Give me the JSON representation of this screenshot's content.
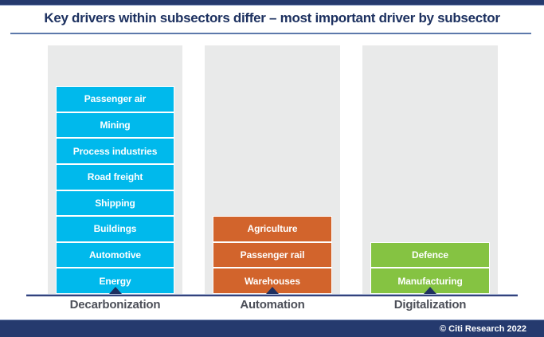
{
  "page": {
    "title": "Key drivers within subsectors differ – most important driver by subsector",
    "footer_credit": "© Citi Research 2022"
  },
  "colors": {
    "navy_bar": "#253a6e",
    "title_navy": "#1d3160",
    "underline_blue": "#5d79ab",
    "panel_gray": "#e9eaea",
    "decarbonization_cyan": "#00b9ec",
    "automation_orange": "#d2642c",
    "digitalization_green": "#85c342",
    "category_label_gray": "#4c4f58",
    "bar_text": "#ffffff",
    "marker_navy": "#1f3060"
  },
  "chart_data": {
    "type": "bar",
    "title": "Key drivers within subsectors differ – most important driver by subsector",
    "categories": [
      "Decarbonization",
      "Automation",
      "Digitalization"
    ],
    "values": [
      8,
      3,
      2
    ],
    "xlabel": "",
    "ylabel": "",
    "grid": false,
    "legend_position": "none",
    "columns": [
      {
        "label": "Decarbonization",
        "color": "#00b9ec",
        "subsector_count": 8,
        "subsectors_top_to_bottom": [
          "Passenger air",
          "Mining",
          "Process industries",
          "Road freight",
          "Shipping",
          "Buildings",
          "Automotive",
          "Energy"
        ]
      },
      {
        "label": "Automation",
        "color": "#d2642c",
        "subsector_count": 3,
        "subsectors_top_to_bottom": [
          "Agriculture",
          "Passenger rail",
          "Warehouses"
        ]
      },
      {
        "label": "Digitalization",
        "color": "#85c342",
        "subsector_count": 2,
        "subsectors_top_to_bottom": [
          "Defence",
          "Manufacturing"
        ]
      }
    ]
  }
}
